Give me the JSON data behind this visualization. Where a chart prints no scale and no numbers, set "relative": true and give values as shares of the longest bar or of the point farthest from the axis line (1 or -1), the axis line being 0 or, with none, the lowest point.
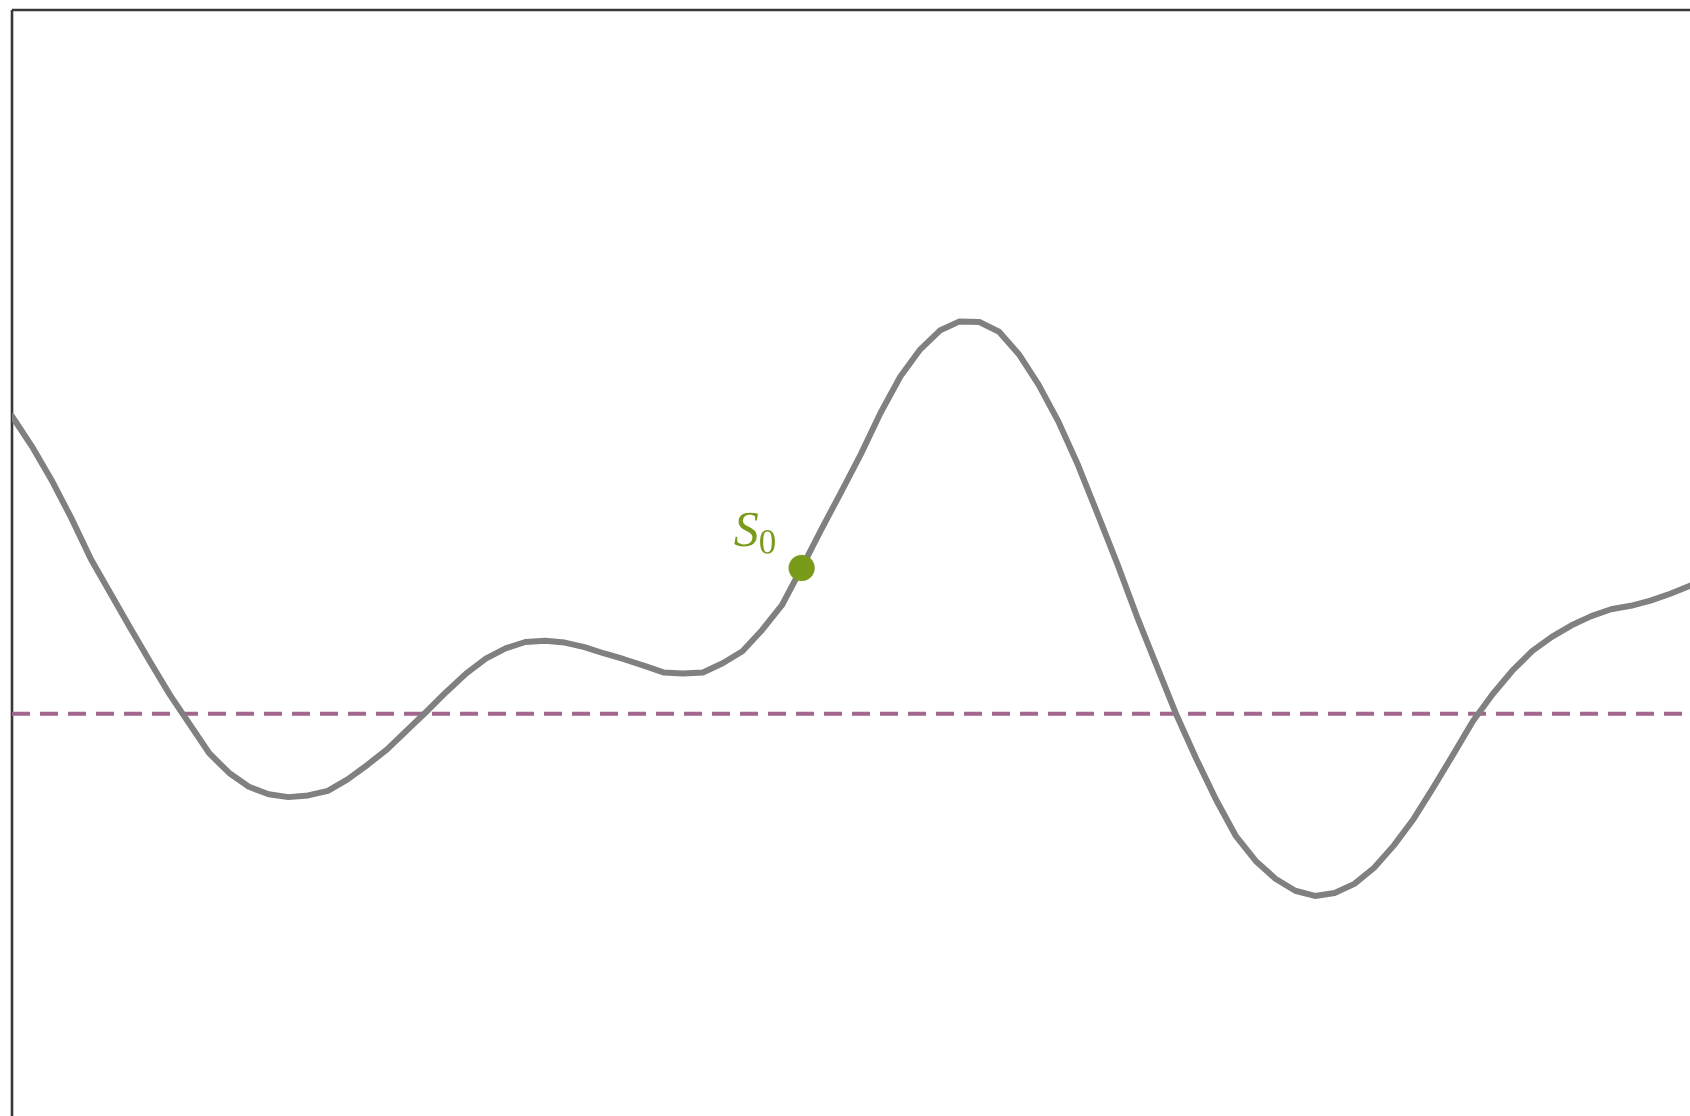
{
  "chart_data": {
    "type": "line",
    "relative": true,
    "categories": [
      null,
      null,
      null,
      null,
      null,
      null,
      null,
      null,
      null,
      null,
      null,
      null,
      null,
      null,
      null,
      null,
      null,
      null,
      null,
      null,
      null,
      null,
      null,
      null,
      null,
      null,
      null,
      null,
      null,
      null,
      null,
      null,
      null,
      null,
      null,
      null,
      null,
      null,
      null,
      null,
      null,
      null,
      null,
      null,
      null,
      null,
      null,
      null,
      null,
      null,
      null,
      null,
      null,
      null,
      null,
      null,
      null,
      null,
      null,
      null,
      null,
      null,
      null,
      null,
      null,
      null,
      null,
      null,
      null,
      null,
      null,
      null,
      null,
      null,
      null,
      null,
      null,
      null,
      null,
      null,
      null,
      null,
      null,
      null,
      null,
      null
    ],
    "series": [
      {
        "color": "#808080",
        "marker": "none",
        "line_style": "solid",
        "values": [
          0.835,
          0.783,
          0.724,
          0.658,
          0.586,
          0.526,
          0.466,
          0.407,
          0.35,
          0.299,
          0.248,
          0.214,
          0.19,
          0.177,
          0.172,
          0.175,
          0.183,
          0.203,
          0.228,
          0.255,
          0.288,
          0.321,
          0.355,
          0.387,
          0.413,
          0.431,
          0.442,
          0.444,
          0.441,
          0.433,
          0.422,
          0.412,
          0.401,
          0.389,
          0.387,
          0.389,
          0.405,
          0.426,
          0.463,
          0.506,
          0.571,
          0.638,
          0.703,
          0.769,
          0.841,
          0.904,
          0.951,
          0.984,
          1,
          0.999,
          0.982,
          0.943,
          0.89,
          0.826,
          0.75,
          0.664,
          0.577,
          0.485,
          0.399,
          0.314,
          0.238,
          0.167,
          0.104,
          0.061,
          0.03,
          0.009,
          0,
          0.005,
          0.021,
          0.049,
          0.088,
          0.134,
          0.189,
          0.246,
          0.304,
          0.351,
          0.392,
          0.426,
          0.451,
          0.471,
          0.487,
          0.499,
          0.505,
          0.514,
          0.526,
          0.54
        ]
      },
      {
        "name": "*S*$_{0}$",
        "color": "#7a9a1a",
        "marker": "circle",
        "values": [
          null,
          null,
          null,
          null,
          null,
          null,
          null,
          null,
          null,
          null,
          null,
          null,
          null,
          null,
          null,
          null,
          null,
          null,
          null,
          null,
          null,
          null,
          null,
          null,
          null,
          null,
          null,
          null,
          null,
          null,
          null,
          null,
          null,
          null,
          null,
          null,
          null,
          null,
          null,
          null,
          0.571,
          null,
          null,
          null,
          null,
          null,
          null,
          null,
          null,
          null,
          null,
          null,
          null,
          null,
          null,
          null,
          null,
          null,
          null,
          null,
          null,
          null,
          null,
          null,
          null,
          null,
          null,
          null,
          null,
          null,
          null,
          null,
          null,
          null,
          null,
          null,
          null,
          null,
          null,
          null,
          null,
          null,
          null,
          null,
          null,
          null
        ]
      }
    ],
    "ref_lines": [
      {
        "axis": "y",
        "value": 0.317,
        "color": "#a3668e",
        "line_style": "dashed"
      }
    ]
  }
}
